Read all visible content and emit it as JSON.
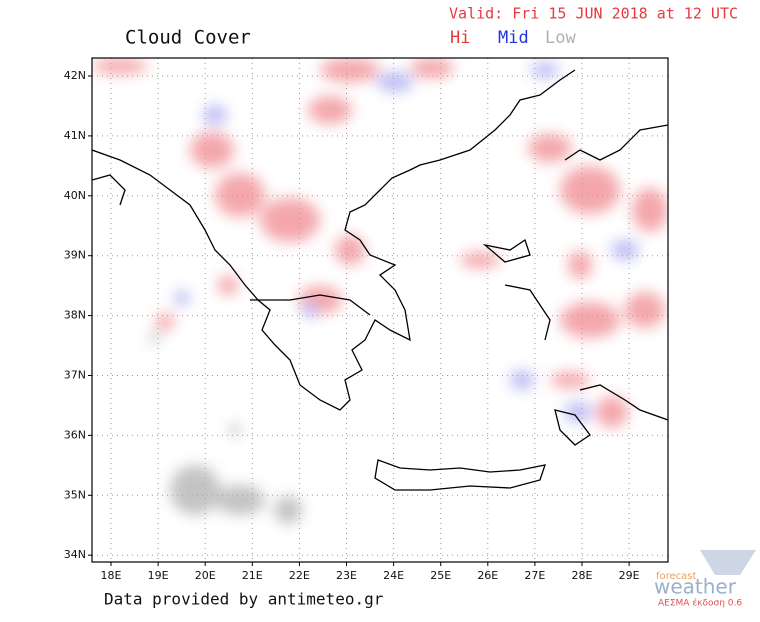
{
  "header": {
    "title": "Cloud Cover",
    "valid": "Valid: Fri 15 JUN 2018 at 12 UTC",
    "legend": [
      {
        "label": "Hi",
        "color": "#e8383d"
      },
      {
        "label": "Mid",
        "color": "#2233dd"
      },
      {
        "label": "Low",
        "color": "#b0b0b0"
      }
    ]
  },
  "map": {
    "lat_labels": [
      "42N",
      "41N",
      "40N",
      "39N",
      "38N",
      "37N",
      "36N",
      "35N",
      "34N"
    ],
    "lon_labels": [
      "18E",
      "19E",
      "20E",
      "21E",
      "22E",
      "23E",
      "24E",
      "25E",
      "26E",
      "27E",
      "28E",
      "29E"
    ]
  },
  "footer": {
    "credit": "Data provided by antimeteo.gr",
    "logo": {
      "top": "forecast",
      "main": "weather",
      "sub": "ΑΕΣΜΑ έκδοση 0.6"
    }
  }
}
